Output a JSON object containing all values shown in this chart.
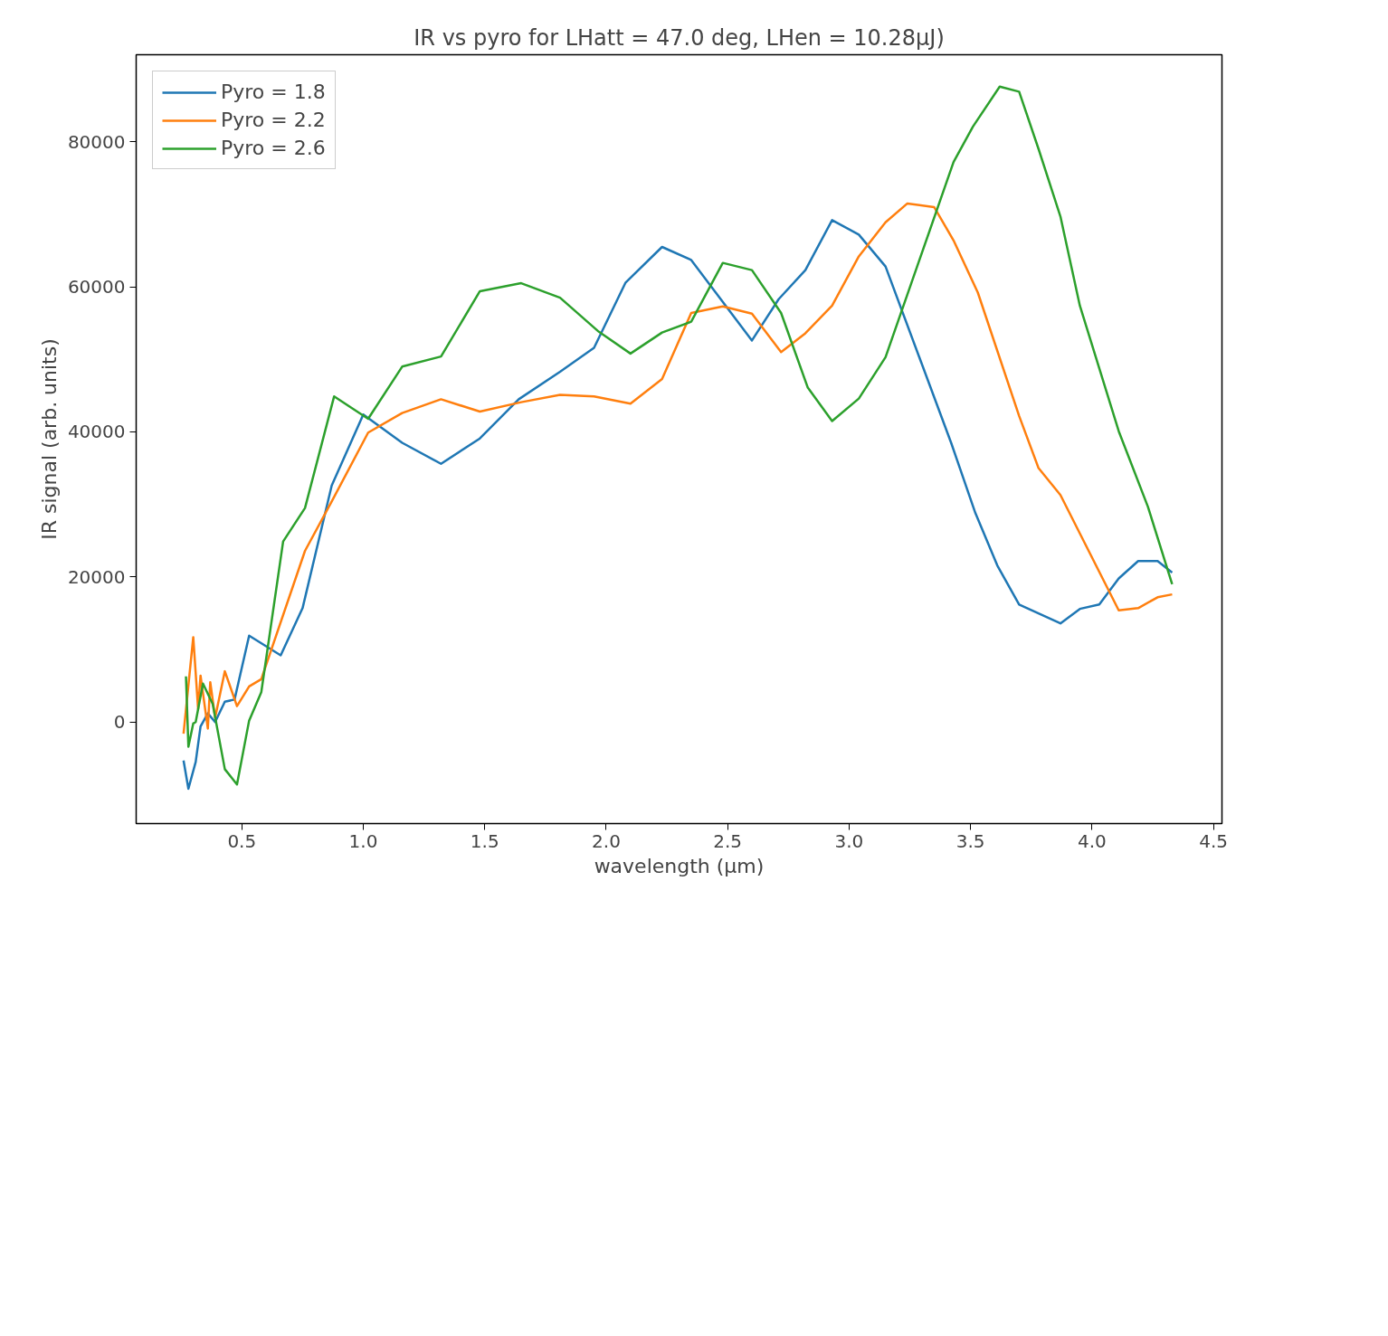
{
  "chart_data": {
    "type": "line",
    "title": "IR vs pyro for LHatt = 47.0 deg, LHen = 10.28μJ)",
    "xlabel": "wavelength (μm)",
    "ylabel": "IR signal (arb. units)",
    "xlim": [
      0.065,
      4.535
    ],
    "ylim": [
      -14000,
      92000
    ],
    "xticks": [
      0.5,
      {
        "value": 1,
        "label": "1.0"
      },
      1.5,
      {
        "value": 2,
        "label": "2.0"
      },
      2.5,
      {
        "value": 3,
        "label": "3.0"
      },
      3.5,
      {
        "value": 4,
        "label": "4.0"
      },
      4.5
    ],
    "yticks": [
      0,
      20000,
      40000,
      60000,
      80000
    ],
    "grid": false,
    "legend": "top left",
    "marker": "none",
    "line_style": "solid",
    "series": [
      {
        "name": "Pyro = 1.8",
        "color": "#1f77b4",
        "x": [
          0.26,
          0.28,
          0.31,
          0.33,
          0.36,
          0.39,
          0.43,
          0.47,
          0.53,
          0.66,
          0.75,
          0.87,
          1.0,
          1.16,
          1.32,
          1.48,
          1.64,
          1.81,
          1.95,
          2.08,
          2.23,
          2.35,
          2.6,
          2.71,
          2.82,
          2.93,
          3.04,
          3.15,
          3.42,
          3.52,
          3.61,
          3.7,
          3.87,
          3.95,
          4.03,
          4.11,
          4.19,
          4.27,
          4.33
        ],
        "values": [
          -5300,
          -9200,
          -5500,
          -600,
          1200,
          0,
          2800,
          3100,
          11900,
          9200,
          15700,
          32600,
          42400,
          38500,
          35600,
          39100,
          44500,
          48300,
          51600,
          60600,
          65500,
          63700,
          52600,
          58300,
          62300,
          69200,
          67200,
          62800,
          38500,
          28800,
          21600,
          16200,
          13600,
          15600,
          16200,
          19800,
          22200,
          22200,
          20600
        ]
      },
      {
        "name": "Pyro = 2.2",
        "color": "#ff7f0e",
        "x": [
          0.26,
          0.3,
          0.32,
          0.33,
          0.36,
          0.37,
          0.39,
          0.43,
          0.48,
          0.53,
          0.58,
          0.76,
          0.87,
          1.02,
          1.16,
          1.32,
          1.48,
          1.65,
          1.81,
          1.95,
          2.1,
          2.23,
          2.35,
          2.48,
          2.6,
          2.72,
          2.82,
          2.93,
          3.04,
          3.15,
          3.24,
          3.35,
          3.43,
          3.53,
          3.7,
          3.78,
          3.87,
          4.11,
          4.19,
          4.27,
          4.33
        ],
        "values": [
          -1600,
          11700,
          1800,
          6400,
          -900,
          5500,
          600,
          7000,
          2200,
          4900,
          5900,
          23600,
          30400,
          39900,
          42600,
          44500,
          42800,
          44100,
          45100,
          44900,
          43900,
          47300,
          56400,
          57300,
          56300,
          51000,
          53600,
          57400,
          64200,
          68900,
          71500,
          71000,
          66400,
          59200,
          42200,
          35000,
          31300,
          15400,
          15700,
          17200,
          17600
        ]
      },
      {
        "name": "Pyro = 2.6",
        "color": "#2ca02c",
        "x": [
          0.27,
          0.28,
          0.3,
          0.31,
          0.34,
          0.38,
          0.43,
          0.48,
          0.53,
          0.58,
          0.67,
          0.76,
          0.88,
          1.02,
          1.16,
          1.32,
          1.48,
          1.65,
          1.81,
          1.97,
          2.1,
          2.23,
          2.35,
          2.48,
          2.6,
          2.72,
          2.83,
          2.93,
          3.04,
          3.15,
          3.43,
          3.51,
          3.62,
          3.7,
          3.78,
          3.87,
          3.95,
          4.11,
          4.23,
          4.33
        ],
        "values": [
          6300,
          -3400,
          -200,
          0,
          5300,
          2500,
          -6500,
          -8600,
          200,
          4100,
          24900,
          29500,
          44900,
          41800,
          49000,
          50400,
          59400,
          60500,
          58500,
          53800,
          50800,
          53700,
          55200,
          63300,
          62300,
          56400,
          46100,
          41500,
          44600,
          50300,
          77200,
          82100,
          87600,
          86900,
          79000,
          69700,
          57400,
          40100,
          29700,
          19000
        ]
      }
    ]
  }
}
